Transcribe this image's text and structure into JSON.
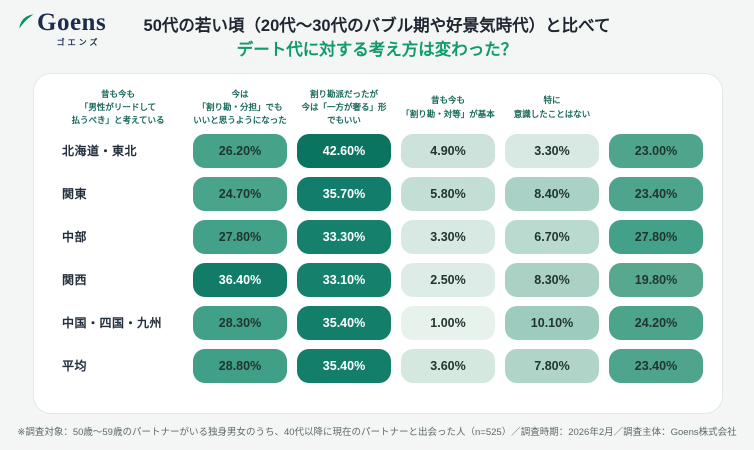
{
  "logo": {
    "name": "Goens",
    "kana": "ゴエンズ",
    "leaf_color": "#0A8F63"
  },
  "title": {
    "line1": "50代の若い頃（20代〜30代のバブル期や好景気時代）と比べて",
    "line2": "デート代に対する考え方は変わった？",
    "accent_color": "#119A6B"
  },
  "chart_data": {
    "type": "heatmap",
    "columns": [
      "昔も今も\n「男性がリードして\n払うべき」と考えている",
      "今は\n「割り勘・分担」でも\nいいと思うようになった",
      "割り勘派だったが\n今は「一方が奢る」形\nでもいい",
      "昔も今も\n「割り勘・対等」が基本",
      "特に\n意識したことはない"
    ],
    "rows": [
      "北海道・東北",
      "関東",
      "中部",
      "関西",
      "中国・四国・九州",
      "平均"
    ],
    "values": [
      [
        26.2,
        42.6,
        4.9,
        3.3,
        23.0
      ],
      [
        24.7,
        35.7,
        5.8,
        8.4,
        23.4
      ],
      [
        27.8,
        33.3,
        3.3,
        6.7,
        27.8
      ],
      [
        36.4,
        33.1,
        2.5,
        8.3,
        19.8
      ],
      [
        28.3,
        35.4,
        1.0,
        10.1,
        24.2
      ],
      [
        28.8,
        35.4,
        3.6,
        7.8,
        23.4
      ]
    ],
    "value_format": {
      "decimals": 2,
      "suffix": "%"
    },
    "color_scale": [
      {
        "value": 1,
        "color": "#E7F2ED"
      },
      {
        "value": 5,
        "color": "#CBE2D9"
      },
      {
        "value": 8.5,
        "color": "#A9D0C4"
      },
      {
        "value": 10.5,
        "color": "#9ACABC"
      },
      {
        "value": 20,
        "color": "#57A78F"
      },
      {
        "value": 29,
        "color": "#3FA087"
      },
      {
        "value": 33,
        "color": "#15816D"
      },
      {
        "value": 43,
        "color": "#0B7361"
      }
    ],
    "text_colors": {
      "on_dark": "#FFFFFF",
      "on_light": "#213530",
      "dark_threshold": 33
    }
  },
  "footer": {
    "note": "※調査対象：50歳〜59歳のパートナーがいる独身男女のうち、40代以降に現在のパートナーと出会った人（n=525）／調査時期：2026年2月／調査主体：Goens株式会社"
  }
}
